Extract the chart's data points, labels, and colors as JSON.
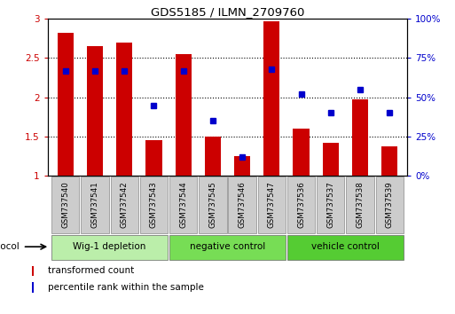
{
  "title": "GDS5185 / ILMN_2709760",
  "samples": [
    "GSM737540",
    "GSM737541",
    "GSM737542",
    "GSM737543",
    "GSM737544",
    "GSM737545",
    "GSM737546",
    "GSM737547",
    "GSM737536",
    "GSM737537",
    "GSM737538",
    "GSM737539"
  ],
  "transformed_counts": [
    2.82,
    2.65,
    2.7,
    1.45,
    2.55,
    1.5,
    1.25,
    2.97,
    1.6,
    1.42,
    1.97,
    1.38
  ],
  "percentile_ranks": [
    67,
    67,
    67,
    45,
    67,
    35,
    12,
    68,
    52,
    40,
    55,
    40
  ],
  "bar_color": "#cc0000",
  "dot_color": "#0000cc",
  "ylim_left": [
    1.0,
    3.0
  ],
  "ylim_right": [
    0,
    100
  ],
  "yticks_left": [
    1.0,
    1.5,
    2.0,
    2.5,
    3.0
  ],
  "yticks_right": [
    0,
    25,
    50,
    75,
    100
  ],
  "ytick_labels_left": [
    "1",
    "1.5",
    "2",
    "2.5",
    "3"
  ],
  "ytick_labels_right": [
    "0%",
    "25%",
    "50%",
    "75%",
    "100%"
  ],
  "grid_levels": [
    1.5,
    2.0,
    2.5
  ],
  "group_spans": [
    {
      "label": "Wig-1 depletion",
      "start": 0,
      "end": 3,
      "color": "#bbeeaa"
    },
    {
      "label": "negative control",
      "start": 4,
      "end": 7,
      "color": "#77dd55"
    },
    {
      "label": "vehicle control",
      "start": 8,
      "end": 11,
      "color": "#55cc33"
    }
  ],
  "sample_box_color": "#cccccc",
  "sample_box_edge": "#888888",
  "legend_red_label": "transformed count",
  "legend_blue_label": "percentile rank within the sample",
  "protocol_label": "protocol"
}
